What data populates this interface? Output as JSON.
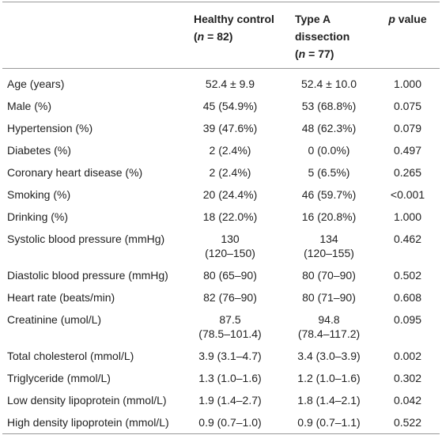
{
  "header": {
    "columns": [
      {
        "title": "Healthy control",
        "count": [
          "(",
          "n",
          " = 82)"
        ]
      },
      {
        "title": "Type A dissection",
        "count": [
          "(",
          "n",
          " = 77)"
        ]
      },
      {
        "title": [
          "p",
          " value"
        ]
      }
    ]
  },
  "table": {
    "rows": [
      [
        "Age (years)",
        "52.4 ± 9.9",
        "52.4 ± 10.0",
        "1.000"
      ],
      [
        "Male (%)",
        "45 (54.9%)",
        "53 (68.8%)",
        "0.075"
      ],
      [
        "Hypertension (%)",
        "39 (47.6%)",
        "48 (62.3%)",
        "0.079"
      ],
      [
        "Diabetes (%)",
        "2 (2.4%)",
        "0 (0.0%)",
        "0.497"
      ],
      [
        "Coronary heart disease (%)",
        "2 (2.4%)",
        "5 (6.5%)",
        "0.265"
      ],
      [
        "Smoking (%)",
        "20 (24.4%)",
        "46 (59.7%)",
        "<0.001"
      ],
      [
        "Drinking (%)",
        "18 (22.0%)",
        "16 (20.8%)",
        "1.000"
      ],
      [
        "Systolic blood pressure (mmHg)",
        [
          "130",
          "(120–150)"
        ],
        [
          "134",
          "(120–155)"
        ],
        "0.462"
      ],
      [
        "Diastolic blood pressure (mmHg)",
        "80 (65–90)",
        "80 (70–90)",
        "0.502"
      ],
      [
        "Heart rate (beats/min)",
        "82 (76–90)",
        "80 (71–90)",
        "0.608"
      ],
      [
        "Creatinine (umol/L)",
        [
          "87.5",
          "(78.5–101.4)"
        ],
        [
          "94.8",
          "(78.4–117.2)"
        ],
        "0.095"
      ],
      [
        "Total cholesterol (mmol/L)",
        "3.9 (3.1–4.7)",
        "3.4 (3.0–3.9)",
        "0.002"
      ],
      [
        "Triglyceride (mmol/L)",
        "1.3 (1.0–1.6)",
        "1.2 (1.0–1.6)",
        "0.302"
      ],
      [
        "Low density lipoprotein (mmol/L)",
        "1.9 (1.4–2.7)",
        "1.8 (1.4–2.1)",
        "0.042"
      ],
      [
        "High density lipoprotein (mmol/L)",
        "0.9 (0.7–1.0)",
        "0.9 (0.7–1.1)",
        "0.522"
      ]
    ]
  }
}
